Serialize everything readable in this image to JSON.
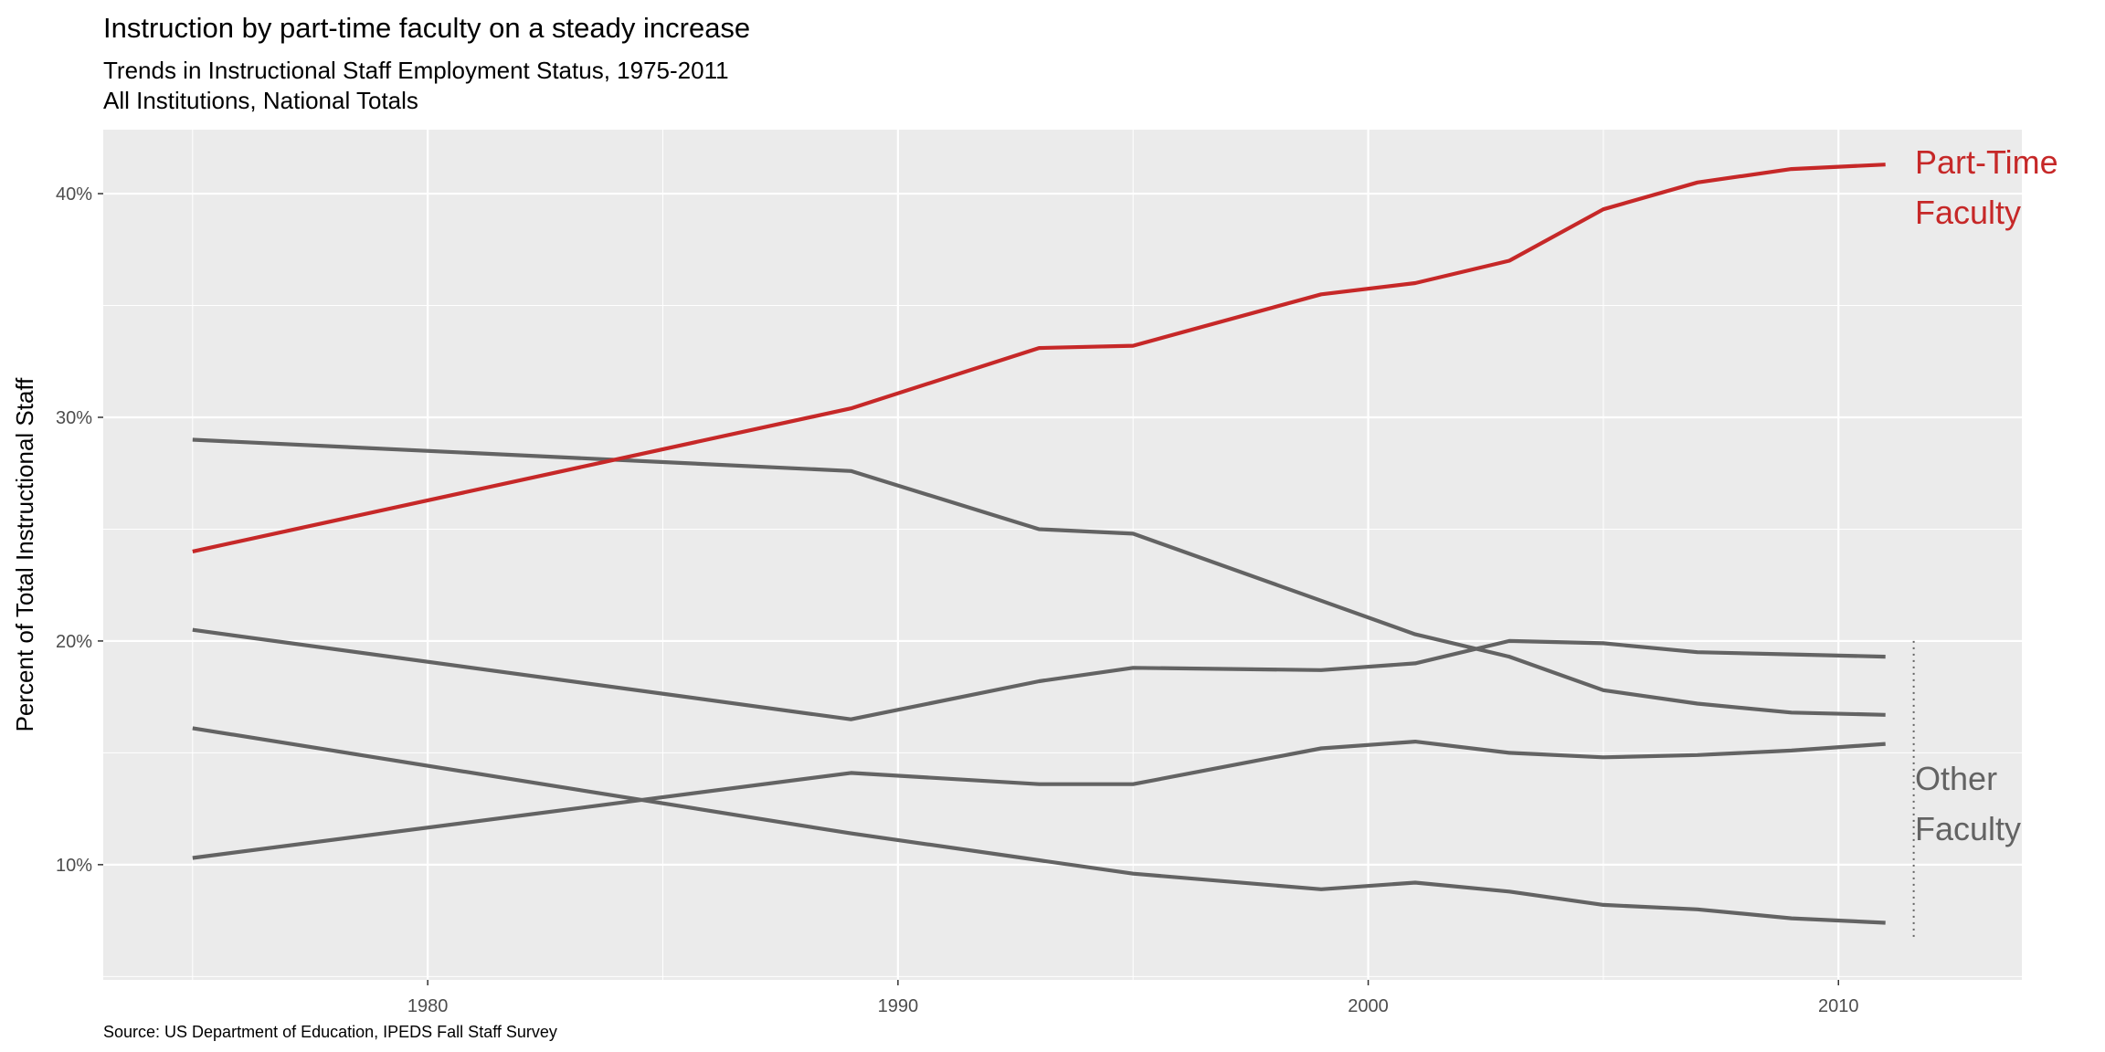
{
  "title": "Instruction by part-time faculty on a steady increase",
  "subtitle_line1": "Trends in Instructional Staff Employment Status, 1975-2011",
  "subtitle_line2": "All Institutions, National Totals",
  "caption": "Source: US Department of Education, IPEDS Fall Staff Survey",
  "colors": {
    "highlight": "#C62828",
    "other": "#636363",
    "panel": "#EBEBEB",
    "grid": "#FFFFFF",
    "axis_text": "#4D4D4D"
  },
  "chart_data": {
    "type": "line",
    "title": "Instruction by part-time faculty on a steady increase",
    "subtitle": "Trends in Instructional Staff Employment Status, 1975-2011 / All Institutions, National Totals",
    "xlabel": "",
    "ylabel": "Percent of Total Instructional Staff",
    "xlim": [
      1973.1,
      2013.9
    ],
    "ylim": [
      0.0485,
      0.4286
    ],
    "x_ticks": [
      1980,
      1990,
      2000,
      2010
    ],
    "x_tick_labels": [
      "1980",
      "1990",
      "2000",
      "2010"
    ],
    "y_ticks": [
      0.1,
      0.2,
      0.3,
      0.4
    ],
    "y_tick_labels": [
      "10%",
      "20%",
      "30%",
      "40%"
    ],
    "grid": true,
    "legend": "none",
    "annotations": [
      {
        "lines": [
          "Part-Time",
          "Faculty"
        ],
        "color": "#C62828"
      },
      {
        "lines": [
          "Other",
          "Faculty"
        ],
        "color": "#636363"
      }
    ],
    "x": [
      1975,
      1989,
      1993,
      1995,
      1999,
      2001,
      2003,
      2005,
      2007,
      2009,
      2011
    ],
    "series": [
      {
        "highlight": true,
        "values": [
          0.24,
          0.304,
          0.331,
          0.332,
          0.355,
          0.36,
          0.37,
          0.393,
          0.405,
          0.411,
          0.413
        ]
      },
      {
        "highlight": false,
        "values": [
          0.29,
          0.276,
          0.25,
          0.248,
          0.218,
          0.203,
          0.193,
          0.178,
          0.172,
          0.168,
          0.167
        ]
      },
      {
        "highlight": false,
        "values": [
          0.205,
          0.165,
          0.182,
          0.188,
          0.187,
          0.19,
          0.2,
          0.199,
          0.195,
          0.194,
          0.193
        ]
      },
      {
        "highlight": false,
        "values": [
          0.103,
          0.141,
          0.136,
          0.136,
          0.152,
          0.155,
          0.15,
          0.148,
          0.149,
          0.151,
          0.154
        ]
      },
      {
        "highlight": false,
        "values": [
          0.161,
          0.114,
          0.102,
          0.096,
          0.089,
          0.092,
          0.088,
          0.082,
          0.08,
          0.076,
          0.074
        ]
      }
    ]
  }
}
